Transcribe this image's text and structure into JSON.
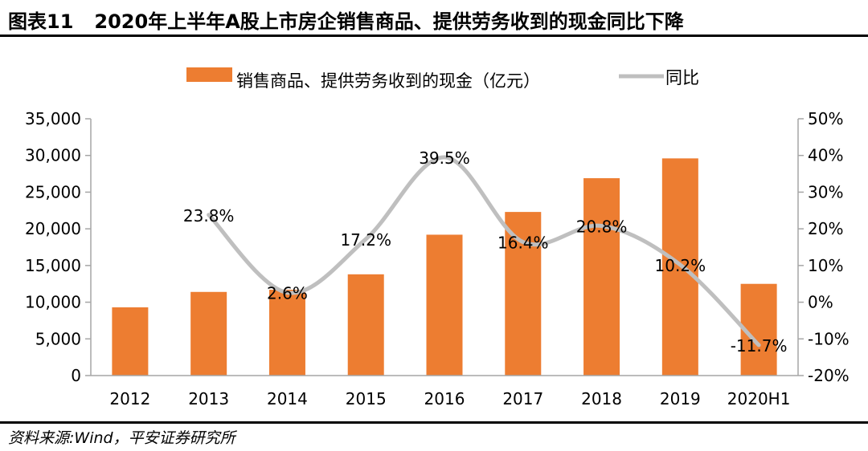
{
  "header": {
    "figure_number": "图表11",
    "title": "2020年上半年A股上市房企销售商品、提供劳务收到的现金同比下降"
  },
  "footer": {
    "source": "资料来源:Wind，平安证券研究所"
  },
  "colors": {
    "bar": "#ED7D31",
    "line": "#BFBFBF",
    "axis": "#A6A6A6"
  },
  "chart_data": {
    "type": "bar",
    "title": "",
    "categories": [
      "2012",
      "2013",
      "2014",
      "2015",
      "2016",
      "2017",
      "2018",
      "2019",
      "2020H1"
    ],
    "series": [
      {
        "name": "销售商品、提供劳务收到的现金（亿元）",
        "type": "bar",
        "axis": "left",
        "values": [
          9300,
          11400,
          11700,
          13800,
          19200,
          22300,
          26900,
          29600,
          12500
        ]
      },
      {
        "name": "同比",
        "type": "line",
        "axis": "right",
        "values": [
          null,
          23.8,
          2.6,
          17.2,
          39.5,
          16.4,
          20.8,
          10.2,
          -11.7
        ],
        "labels": [
          "",
          "23.8%",
          "2.6%",
          "17.2%",
          "39.5%",
          "16.4%",
          "20.8%",
          "10.2%",
          "-11.7%"
        ]
      }
    ],
    "y_left": {
      "ylim": [
        0,
        35000
      ],
      "ticks": [
        0,
        5000,
        10000,
        15000,
        20000,
        25000,
        30000,
        35000
      ],
      "tick_labels": [
        "0",
        "5,000",
        "10,000",
        "15,000",
        "20,000",
        "25,000",
        "30,000",
        "35,000"
      ]
    },
    "y_right": {
      "ylim": [
        -20,
        50
      ],
      "ticks": [
        -20,
        -10,
        0,
        10,
        20,
        30,
        40,
        50
      ],
      "tick_labels": [
        "-20%",
        "-10%",
        "0%",
        "10%",
        "20%",
        "30%",
        "40%",
        "50%"
      ]
    },
    "grid": false,
    "legend_position": "top-center"
  }
}
